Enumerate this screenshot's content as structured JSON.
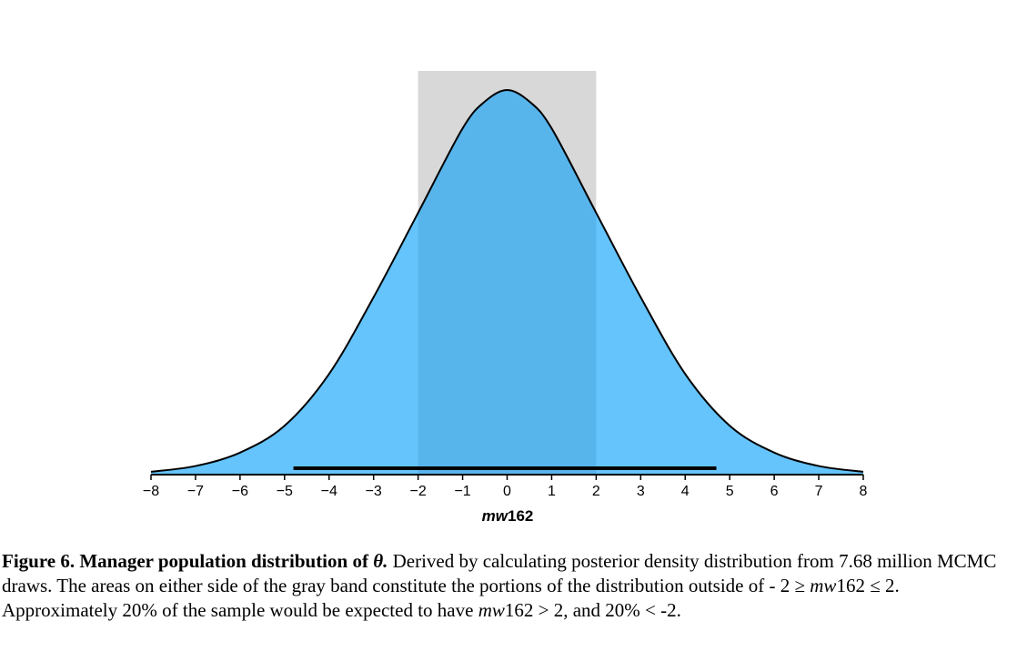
{
  "chart_data": {
    "type": "area",
    "title": "",
    "xlabel_italic": "mw",
    "xlabel_rest": "162",
    "xlim": [
      -8,
      8
    ],
    "x_ticks": [
      -8,
      -7,
      -6,
      -5,
      -4,
      -3,
      -2,
      -1,
      0,
      1,
      2,
      3,
      4,
      5,
      6,
      7,
      8
    ],
    "x_tick_labels": [
      "−8",
      "−7",
      "−6",
      "−5",
      "−4",
      "−3",
      "−2",
      "−1",
      "0",
      "1",
      "2",
      "3",
      "4",
      "5",
      "6",
      "7",
      "8"
    ],
    "density_relative": {
      "x": [
        -8,
        -7,
        -6,
        -5,
        -4,
        -3,
        -2,
        -1,
        -0.5,
        0,
        0.5,
        1,
        2,
        3,
        4,
        5,
        6,
        7,
        8
      ],
      "y": [
        0.005,
        0.02,
        0.055,
        0.125,
        0.26,
        0.46,
        0.68,
        0.9,
        0.97,
        1.0,
        0.97,
        0.9,
        0.68,
        0.46,
        0.26,
        0.125,
        0.055,
        0.02,
        0.005
      ]
    },
    "gray_band": [
      -2,
      2
    ],
    "interval_bar": [
      -4.8,
      4.7
    ],
    "colors": {
      "fill": "#64c4fb",
      "band": "#d8d8d8",
      "overlap": "#58b5ec",
      "line": "#000000"
    }
  },
  "caption": {
    "label": "Figure 6. Manager population distribution of ",
    "theta": "θ.",
    "part1": " Derived by calculating posterior density distribution from 7.68 million MCMC draws. The areas on either side of the gray band constitute the portions of the distribution outside of - 2 ≥ ",
    "var1": "mw",
    "part2": "162 ≤ 2. Approximately 20% of the sample would be expected to have ",
    "var2": "mw",
    "part3": "162 > 2, and 20% < -2."
  }
}
